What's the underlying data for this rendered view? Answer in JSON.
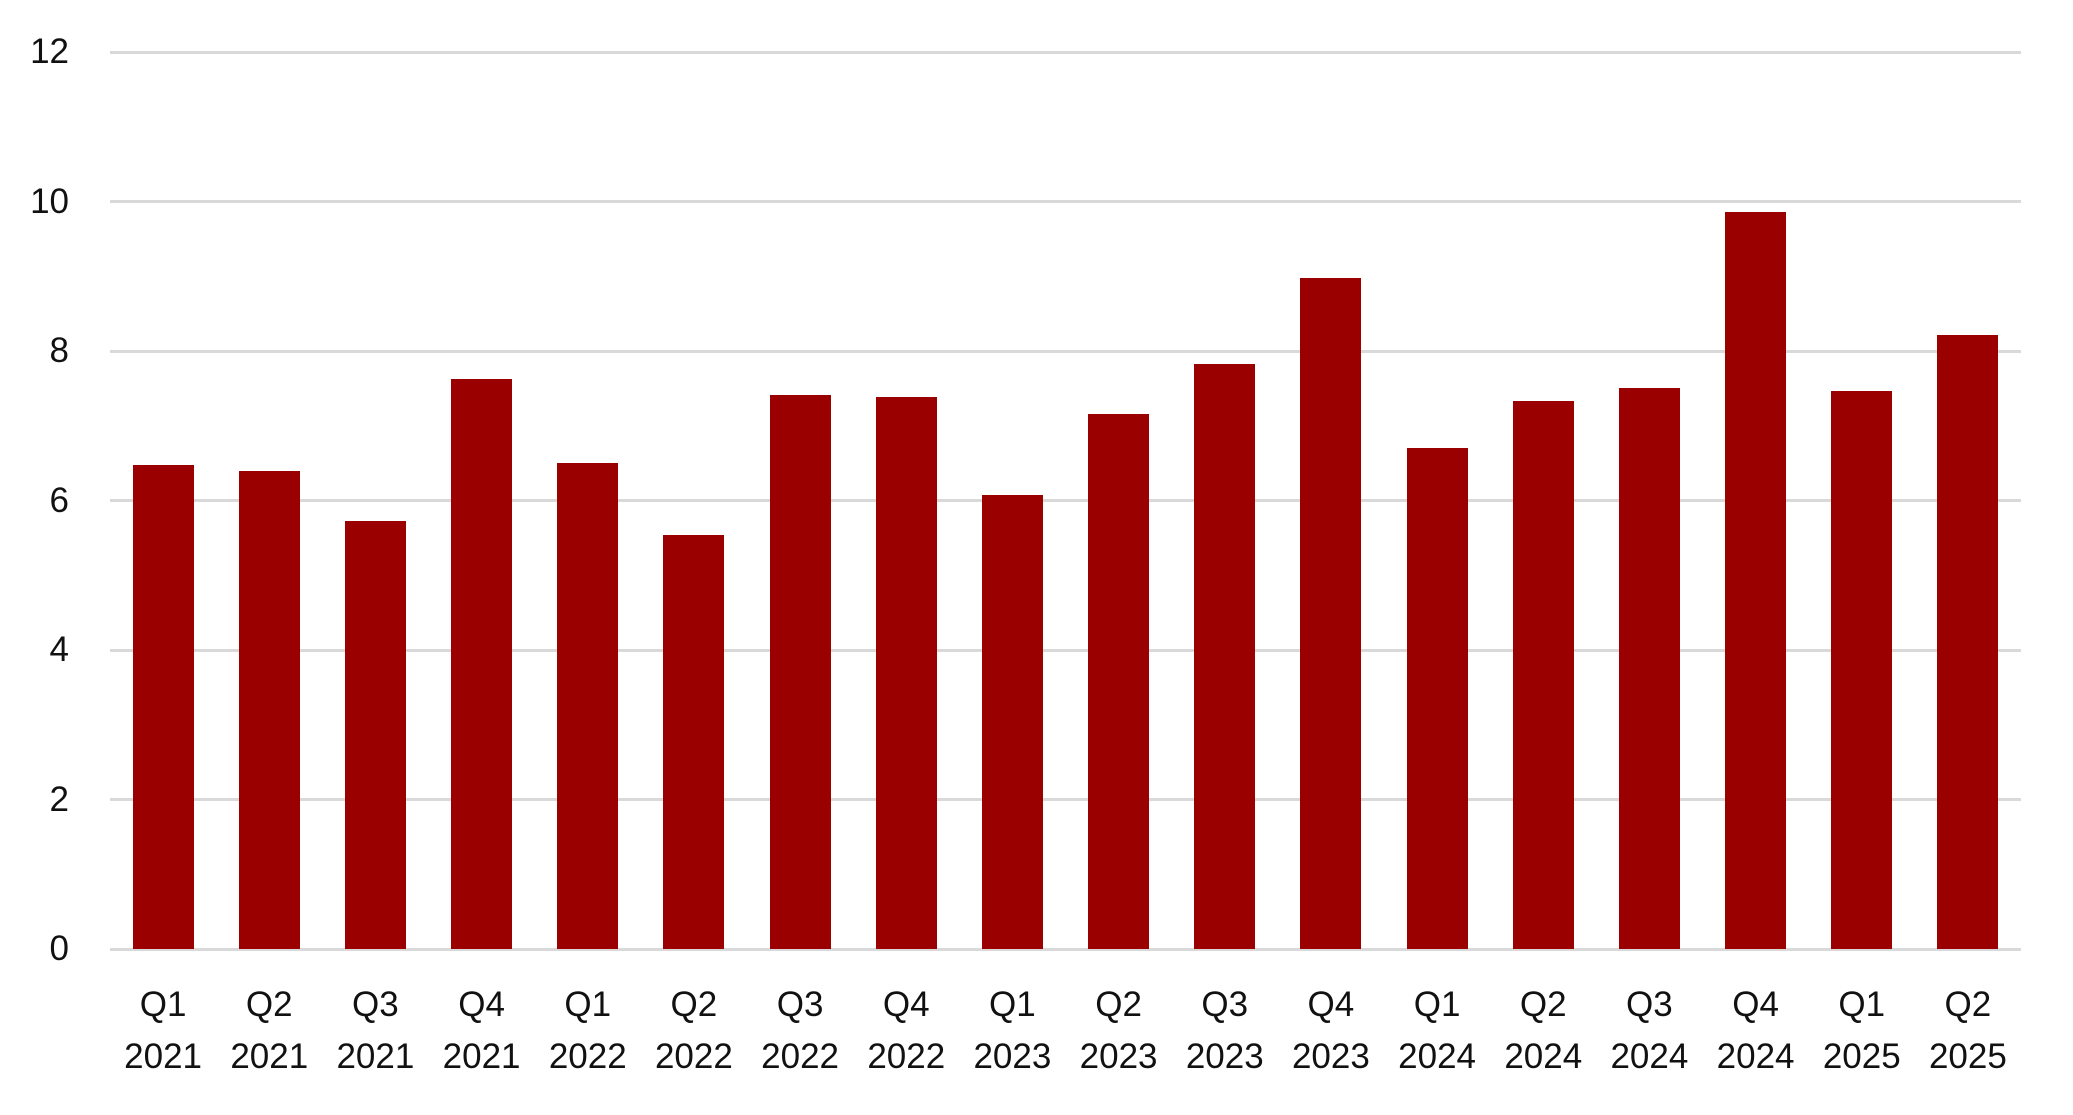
{
  "chart_data": {
    "type": "bar",
    "title": "",
    "xlabel": "",
    "ylabel": "",
    "ylim": [
      0,
      12
    ],
    "yticks": [
      0,
      2,
      4,
      6,
      8,
      10,
      12
    ],
    "grid": true,
    "legend": null,
    "bar_color": "#9b0000",
    "gridline_color": "#d9d9d9",
    "categories": [
      "Q1 2021",
      "Q2 2021",
      "Q3 2021",
      "Q4 2021",
      "Q1 2022",
      "Q2 2022",
      "Q3 2022",
      "Q4 2022",
      "Q1 2023",
      "Q2 2023",
      "Q3 2023",
      "Q4 2023",
      "Q1 2024",
      "Q2 2024",
      "Q3 2024",
      "Q4 2024",
      "Q1 2025",
      "Q2 2025"
    ],
    "category_labels": [
      {
        "quarter": "Q1",
        "year": "2021"
      },
      {
        "quarter": "Q2",
        "year": "2021"
      },
      {
        "quarter": "Q3",
        "year": "2021"
      },
      {
        "quarter": "Q4",
        "year": "2021"
      },
      {
        "quarter": "Q1",
        "year": "2022"
      },
      {
        "quarter": "Q2",
        "year": "2022"
      },
      {
        "quarter": "Q3",
        "year": "2022"
      },
      {
        "quarter": "Q4",
        "year": "2022"
      },
      {
        "quarter": "Q1",
        "year": "2023"
      },
      {
        "quarter": "Q2",
        "year": "2023"
      },
      {
        "quarter": "Q3",
        "year": "2023"
      },
      {
        "quarter": "Q4",
        "year": "2023"
      },
      {
        "quarter": "Q1",
        "year": "2024"
      },
      {
        "quarter": "Q2",
        "year": "2024"
      },
      {
        "quarter": "Q3",
        "year": "2024"
      },
      {
        "quarter": "Q4",
        "year": "2024"
      },
      {
        "quarter": "Q1",
        "year": "2025"
      },
      {
        "quarter": "Q2",
        "year": "2025"
      }
    ],
    "values": [
      6.47,
      6.39,
      5.72,
      7.63,
      6.5,
      5.54,
      7.41,
      7.38,
      6.07,
      7.16,
      7.82,
      8.97,
      6.7,
      7.33,
      7.51,
      9.86,
      7.46,
      8.21
    ]
  }
}
